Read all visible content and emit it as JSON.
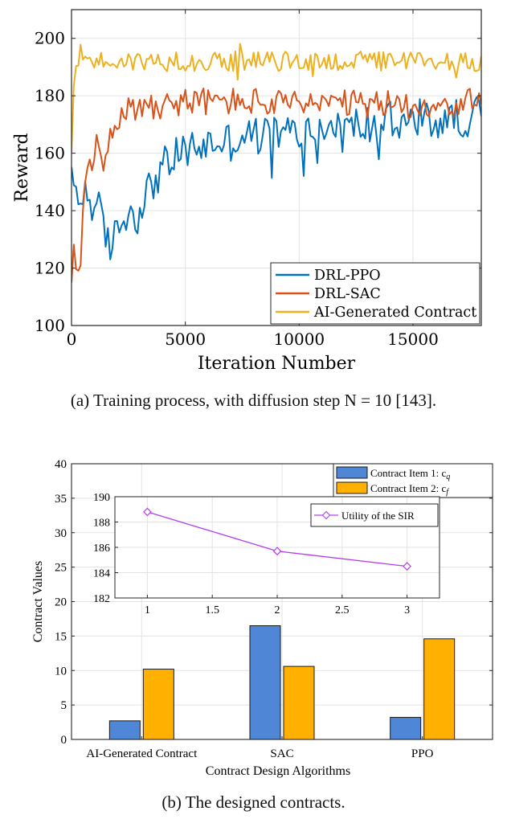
{
  "figure_a": {
    "caption_text": "(a) Training process, with diffusion step N = 10 [143].",
    "colors": {
      "ppo": "#0072BD",
      "sac": "#D95319",
      "ai": "#EDB120"
    }
  },
  "figure_b": {
    "caption_text": "(b) The designed contracts.",
    "colors": {
      "item1": "#4F86D6",
      "item2": "#FFB000",
      "utility": "#B23DF0"
    }
  },
  "chart_data": [
    {
      "type": "line",
      "title": "",
      "xlabel": "Iteration Number",
      "ylabel": "Reward",
      "xlim": [
        0,
        18000
      ],
      "ylim": [
        100,
        210
      ],
      "xticks": [
        0,
        5000,
        10000,
        15000
      ],
      "xtick_labels": [
        "0",
        "5000",
        "10000",
        "15000"
      ],
      "yticks": [
        100,
        120,
        140,
        160,
        180,
        200
      ],
      "ytick_labels": [
        "100",
        "120",
        "140",
        "160",
        "180",
        "200"
      ],
      "grid": true,
      "legend_position": "bottom-right",
      "x_step": 100,
      "series": [
        {
          "name": "DRL-PPO",
          "keypoints": [
            [
              0,
              149
            ],
            [
              200,
              147
            ],
            [
              400,
              144
            ],
            [
              600,
              146
            ],
            [
              800,
              145
            ],
            [
              1000,
              141
            ],
            [
              1200,
              140
            ],
            [
              1500,
              130
            ],
            [
              1800,
              128
            ],
            [
              2000,
              133
            ],
            [
              2300,
              138
            ],
            [
              2600,
              140
            ],
            [
              2800,
              136
            ],
            [
              3000,
              142
            ],
            [
              3300,
              146
            ],
            [
              3600,
              150
            ],
            [
              4000,
              155
            ],
            [
              4500,
              158
            ],
            [
              5000,
              161
            ],
            [
              5500,
              162
            ],
            [
              6000,
              163
            ],
            [
              6500,
              164
            ],
            [
              7000,
              164
            ],
            [
              7500,
              166
            ],
            [
              8000,
              166
            ],
            [
              8500,
              166
            ],
            [
              9000,
              167
            ],
            [
              10000,
              167
            ],
            [
              11000,
              168
            ],
            [
              12000,
              169
            ],
            [
              13000,
              170
            ],
            [
              14000,
              170
            ],
            [
              15000,
              171
            ],
            [
              16000,
              171
            ],
            [
              17000,
              172
            ],
            [
              18000,
              174
            ]
          ],
          "noise": 7
        },
        {
          "name": "DRL-SAC",
          "keypoints": [
            [
              0,
              114
            ],
            [
              150,
              122
            ],
            [
              300,
              124
            ],
            [
              500,
              136
            ],
            [
              700,
              150
            ],
            [
              900,
              158
            ],
            [
              1100,
              162
            ],
            [
              1300,
              160
            ],
            [
              1500,
              163
            ],
            [
              1700,
              168
            ],
            [
              2000,
              172
            ],
            [
              2500,
              175
            ],
            [
              3000,
              176
            ],
            [
              3500,
              177
            ],
            [
              4000,
              177
            ],
            [
              5000,
              178
            ],
            [
              6000,
              178
            ],
            [
              7000,
              178
            ],
            [
              8000,
              178
            ],
            [
              9000,
              177
            ],
            [
              10000,
              177
            ],
            [
              11000,
              177
            ],
            [
              12000,
              177
            ],
            [
              13000,
              177
            ],
            [
              14000,
              177
            ],
            [
              15000,
              177
            ],
            [
              16000,
              177
            ],
            [
              17000,
              177
            ],
            [
              18000,
              178
            ]
          ],
          "noise": 5
        },
        {
          "name": "AI-Generated Contract",
          "keypoints": [
            [
              0,
              163
            ],
            [
              100,
              184
            ],
            [
              250,
              193
            ],
            [
              400,
              195
            ],
            [
              600,
              193
            ],
            [
              1000,
              192
            ],
            [
              2000,
              192
            ],
            [
              3000,
              192
            ],
            [
              4000,
              192
            ],
            [
              6000,
              192
            ],
            [
              8000,
              192
            ],
            [
              10000,
              192
            ],
            [
              12000,
              192
            ],
            [
              14000,
              192
            ],
            [
              16000,
              192
            ],
            [
              18000,
              192
            ]
          ],
          "noise": 3.5
        }
      ]
    },
    {
      "type": "bar",
      "title": "",
      "xlabel": "Contract Design Algorithms",
      "ylabel": "Contract Values",
      "categories": [
        "AI-Generated Contract",
        "SAC",
        "PPO"
      ],
      "ylim": [
        0,
        40
      ],
      "yticks": [
        0,
        5,
        10,
        15,
        20,
        25,
        30,
        35,
        40
      ],
      "ytick_labels": [
        "0",
        "5",
        "10",
        "15",
        "20",
        "25",
        "30",
        "35",
        "40"
      ],
      "grid": true,
      "legend_position": "top-right",
      "series": [
        {
          "name": "Contract Item 1: c",
          "sub": "q",
          "values": [
            2.7,
            16.5,
            3.2
          ]
        },
        {
          "name": "Contract Item 2: c",
          "sub": "f",
          "values": [
            10.2,
            10.6,
            14.6
          ]
        }
      ]
    },
    {
      "type": "line",
      "title": "",
      "xlabel": "",
      "ylabel": "",
      "x": [
        1,
        2,
        3
      ],
      "xlim": [
        0.75,
        3.25
      ],
      "ylim": [
        182,
        190
      ],
      "xticks": [
        1,
        1.5,
        2,
        2.5,
        3
      ],
      "xtick_labels": [
        "1",
        "1.5",
        "2",
        "2.5",
        "3"
      ],
      "yticks": [
        182,
        184,
        186,
        188,
        190
      ],
      "ytick_labels": [
        "182",
        "184",
        "186",
        "188",
        "190"
      ],
      "grid": true,
      "legend_position": "top-right",
      "series": [
        {
          "name": "Utility of the SIR",
          "values": [
            188.8,
            185.7,
            184.5
          ],
          "marker": "diamond"
        }
      ]
    }
  ]
}
